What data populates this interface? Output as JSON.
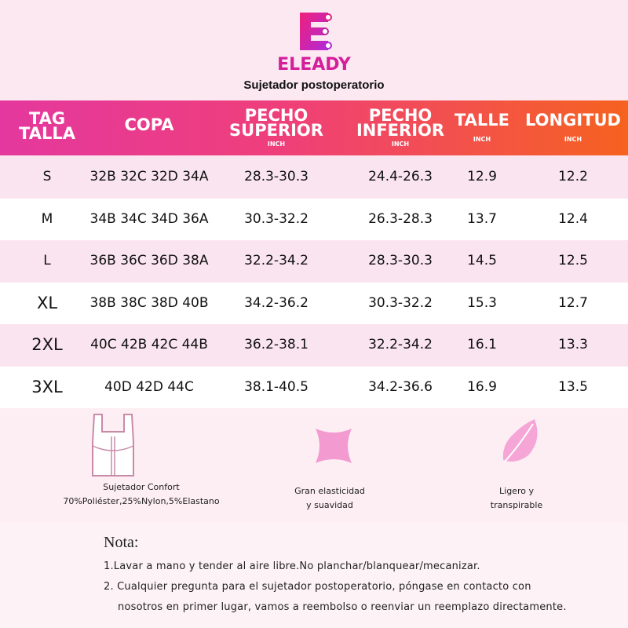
{
  "header": {
    "brand": "ELEADY",
    "subtitle": "Sujetador postoperatorio"
  },
  "table": {
    "columns": [
      {
        "lines": [
          "TAG",
          "TALLA"
        ]
      },
      {
        "lines": [
          "COPA"
        ]
      },
      {
        "lines": [
          "PECHO",
          "SUPERIOR"
        ],
        "unit": "INCH"
      },
      {
        "lines": [
          "PECHO",
          "INFERIOR"
        ],
        "unit": "INCH"
      },
      {
        "lines": [
          "TALLE"
        ],
        "unit": "INCH"
      },
      {
        "lines": [
          "LONGITUD"
        ],
        "unit": "INCH"
      }
    ],
    "rows": [
      [
        "S",
        "32B 32C 32D 34A",
        "28.3-30.3",
        "24.4-26.3",
        "12.9",
        "12.2"
      ],
      [
        "M",
        "34B 34C 34D 36A",
        "30.3-32.2",
        "26.3-28.3",
        "13.7",
        "12.4"
      ],
      [
        "L",
        "36B 36C 36D 38A",
        "32.2-34.2",
        "28.3-30.3",
        "14.5",
        "12.5"
      ],
      [
        "XL",
        "38B 38C 38D 40B",
        "34.2-36.2",
        "30.3-32.2",
        "15.3",
        "12.7"
      ],
      [
        "2XL",
        "40C 42B 42C 44B",
        "36.2-38.1",
        "32.2-34.2",
        "16.1",
        "13.3"
      ],
      [
        "3XL",
        "40D 42D 44C",
        "38.1-40.5",
        "34.2-36.6",
        "16.9",
        "13.5"
      ]
    ]
  },
  "features": [
    {
      "lines": [
        "Sujetador Confort",
        "70%Poliéster,25%Nylon,5%Elastano"
      ]
    },
    {
      "lines": [
        "Gran elasticidad",
        "y suavidad"
      ]
    },
    {
      "lines": [
        "Ligero y",
        "transpirable"
      ]
    }
  ],
  "note": {
    "title": "Nota:",
    "items": [
      [
        "1.Lavar a mano y tender al aire libre.No planchar/blanquear/mecanizar."
      ],
      [
        "2. Cualquier pregunta para el sujetador postoperatorio, póngase en contacto con",
        "nosotros en primer lugar, vamos a reembolso o reenviar un reemplazo directamente."
      ]
    ]
  }
}
